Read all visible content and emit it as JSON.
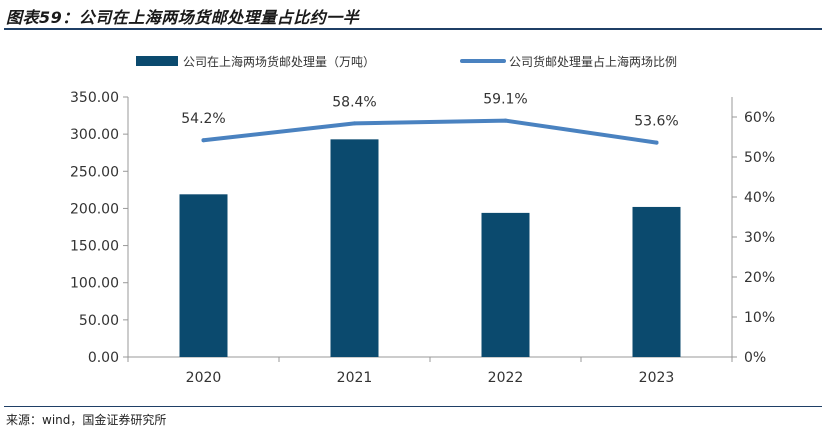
{
  "figure": {
    "title": "图表59：公司在上海两场货邮处理量占比约一半",
    "source": "来源：wind，国金证券研究所"
  },
  "colors": {
    "bar": "#0b4a6e",
    "line": "#4a82c0",
    "axis": "#999999",
    "text": "#333333"
  },
  "chart_data": {
    "type": "bar",
    "categories": [
      "2020",
      "2021",
      "2022",
      "2023"
    ],
    "series": [
      {
        "name": "公司在上海两场货邮处理量（万吨）",
        "type": "bar",
        "axis": "left",
        "values": [
          219,
          293,
          194,
          202
        ]
      },
      {
        "name": "公司货邮处理量占上海两场比例",
        "type": "line",
        "axis": "right",
        "values": [
          54.2,
          58.4,
          59.1,
          53.6
        ],
        "labels": [
          "54.2%",
          "58.4%",
          "59.1%",
          "53.6%"
        ]
      }
    ],
    "y_left": {
      "lim": [
        0,
        350
      ],
      "ticks": [
        0,
        50,
        100,
        150,
        200,
        250,
        300,
        350
      ],
      "tick_labels": [
        "0.00",
        "50.00",
        "100.00",
        "150.00",
        "200.00",
        "250.00",
        "300.00",
        "350.00"
      ]
    },
    "y_right": {
      "lim": [
        0,
        65
      ],
      "ticks": [
        0,
        10,
        20,
        30,
        40,
        50,
        60
      ],
      "tick_labels": [
        "0%",
        "10%",
        "20%",
        "30%",
        "40%",
        "50%",
        "60%"
      ]
    },
    "legend_position": "top",
    "grid": false
  }
}
